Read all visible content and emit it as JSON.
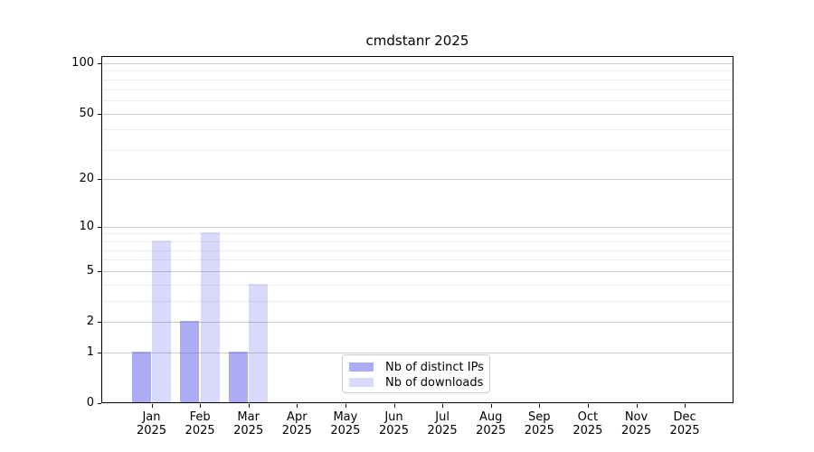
{
  "chart_data": {
    "type": "bar",
    "title": "cmdstanr 2025",
    "categories": [
      "Jan 2025",
      "Feb 2025",
      "Mar 2025",
      "Apr 2025",
      "May 2025",
      "Jun 2025",
      "Jul 2025",
      "Aug 2025",
      "Sep 2025",
      "Oct 2025",
      "Nov 2025",
      "Dec 2025"
    ],
    "series": [
      {
        "name": "Nb of distinct IPs",
        "color": "rgba(102,102,238,0.55)",
        "values": [
          1,
          2,
          1,
          0,
          0,
          0,
          0,
          0,
          0,
          0,
          0,
          0
        ]
      },
      {
        "name": "Nb of downloads",
        "color": "rgba(102,102,238,0.25)",
        "values": [
          8,
          9,
          4,
          0,
          0,
          0,
          0,
          0,
          0,
          0,
          0,
          0
        ]
      }
    ],
    "xlabel": "",
    "ylabel": "",
    "yscale": "log1p",
    "ylim": [
      0,
      108
    ],
    "yticks": [
      0,
      1,
      2,
      5,
      10,
      20,
      50,
      100
    ],
    "yticks_minor": [
      3,
      4,
      6,
      7,
      8,
      9,
      30,
      40,
      60,
      70,
      80,
      90
    ],
    "grid": "horizontal, major and minor, on",
    "legend_position": "lower center inside axes"
  },
  "colors": {
    "background": "#ffffff",
    "axis": "#000000",
    "text": "#000000",
    "major_grid": "#c9c9c9",
    "minor_grid": "#ececec",
    "legend_border": "#cccccc"
  }
}
